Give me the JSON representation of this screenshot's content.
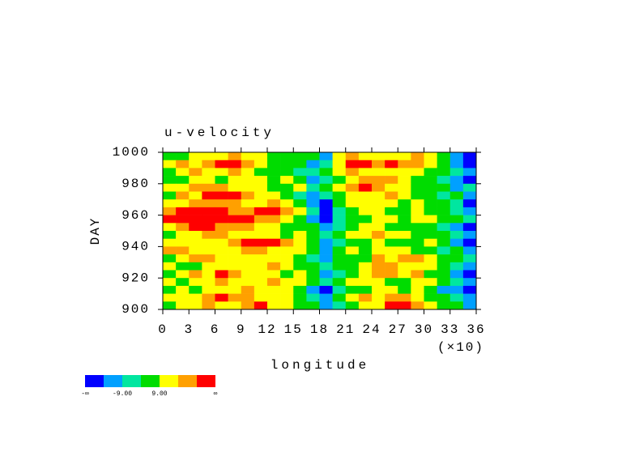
{
  "chart_data": {
    "type": "heatmap",
    "title": "u-velocity",
    "x_label": "longitude",
    "x_scale_label": "(×10)",
    "y_label": "DAY",
    "xlim": [
      0,
      36
    ],
    "xticks": [
      0,
      3,
      6,
      9,
      12,
      15,
      18,
      21,
      24,
      27,
      30,
      33,
      36
    ],
    "ylim": [
      900,
      1000
    ],
    "yticks": [
      900,
      920,
      940,
      960,
      980,
      1000
    ],
    "x": [
      0.75,
      2.25,
      3.75,
      5.25,
      6.75,
      8.25,
      9.75,
      11.25,
      12.75,
      14.25,
      15.75,
      17.25,
      18.75,
      20.25,
      21.75,
      23.25,
      24.75,
      26.25,
      27.75,
      29.25,
      30.75,
      32.25,
      33.75,
      35.25
    ],
    "y": [
      997.5,
      992.5,
      987.5,
      982.5,
      977.5,
      972.5,
      967.5,
      962.5,
      957.5,
      952.5,
      947.5,
      942.5,
      937.5,
      932.5,
      927.5,
      922.5,
      917.5,
      912.5,
      907.5,
      902.5
    ],
    "z": [
      [
        4,
        4,
        13,
        13,
        13,
        22,
        13,
        13,
        4,
        4,
        4,
        4,
        -13,
        13,
        22,
        13,
        13,
        13,
        13,
        22,
        13,
        4,
        -13,
        -22
      ],
      [
        13,
        22,
        13,
        22,
        31,
        31,
        22,
        13,
        4,
        4,
        4,
        -13,
        -4,
        13,
        31,
        31,
        22,
        31,
        22,
        22,
        13,
        4,
        -13,
        -22
      ],
      [
        4,
        13,
        22,
        13,
        13,
        22,
        13,
        4,
        4,
        4,
        -4,
        -4,
        4,
        13,
        22,
        13,
        13,
        13,
        13,
        13,
        4,
        4,
        -4,
        -13
      ],
      [
        4,
        4,
        13,
        13,
        4,
        13,
        13,
        13,
        4,
        13,
        4,
        -13,
        -4,
        4,
        13,
        22,
        22,
        22,
        13,
        4,
        4,
        -4,
        -13,
        -22
      ],
      [
        13,
        13,
        22,
        22,
        22,
        13,
        13,
        13,
        4,
        4,
        13,
        -4,
        4,
        13,
        22,
        31,
        22,
        13,
        13,
        4,
        4,
        4,
        -13,
        -4
      ],
      [
        4,
        22,
        13,
        31,
        31,
        31,
        22,
        13,
        13,
        4,
        -4,
        -13,
        -4,
        4,
        13,
        13,
        13,
        22,
        13,
        4,
        4,
        -4,
        4,
        -13
      ],
      [
        13,
        13,
        22,
        22,
        22,
        22,
        13,
        13,
        22,
        13,
        4,
        -13,
        -22,
        4,
        13,
        13,
        13,
        13,
        4,
        13,
        4,
        4,
        -4,
        -22
      ],
      [
        22,
        31,
        31,
        31,
        31,
        22,
        22,
        31,
        31,
        22,
        13,
        -4,
        -22,
        -4,
        4,
        13,
        13,
        4,
        4,
        13,
        4,
        4,
        -4,
        -13
      ],
      [
        31,
        31,
        31,
        31,
        31,
        31,
        31,
        22,
        22,
        13,
        4,
        -13,
        -22,
        -4,
        4,
        4,
        13,
        13,
        4,
        13,
        13,
        4,
        4,
        -4
      ],
      [
        13,
        22,
        31,
        31,
        22,
        22,
        22,
        13,
        13,
        4,
        4,
        4,
        -13,
        -4,
        4,
        13,
        13,
        4,
        4,
        4,
        4,
        -4,
        -13,
        -22
      ],
      [
        4,
        13,
        13,
        22,
        22,
        13,
        13,
        13,
        13,
        4,
        13,
        4,
        -4,
        4,
        13,
        13,
        22,
        13,
        13,
        4,
        4,
        4,
        -4,
        -13
      ],
      [
        13,
        13,
        13,
        13,
        13,
        22,
        31,
        31,
        31,
        22,
        13,
        4,
        -13,
        -4,
        4,
        4,
        13,
        4,
        4,
        4,
        13,
        4,
        -13,
        -22
      ],
      [
        22,
        22,
        13,
        13,
        13,
        13,
        22,
        22,
        13,
        13,
        13,
        4,
        -13,
        4,
        13,
        4,
        13,
        13,
        13,
        4,
        4,
        -4,
        4,
        -13
      ],
      [
        4,
        13,
        22,
        22,
        13,
        13,
        13,
        13,
        13,
        13,
        4,
        -4,
        -13,
        4,
        4,
        4,
        22,
        13,
        22,
        22,
        13,
        4,
        4,
        -4
      ],
      [
        13,
        4,
        4,
        13,
        13,
        13,
        13,
        13,
        22,
        13,
        4,
        4,
        -4,
        4,
        4,
        13,
        22,
        22,
        13,
        13,
        13,
        4,
        -4,
        -13
      ],
      [
        4,
        13,
        22,
        13,
        31,
        22,
        13,
        13,
        13,
        4,
        13,
        4,
        -13,
        -4,
        4,
        13,
        22,
        22,
        13,
        22,
        4,
        4,
        -13,
        -22
      ],
      [
        13,
        4,
        13,
        13,
        22,
        13,
        13,
        13,
        22,
        13,
        13,
        4,
        -4,
        4,
        13,
        13,
        13,
        4,
        4,
        13,
        13,
        4,
        -4,
        -13
      ],
      [
        4,
        13,
        4,
        13,
        13,
        13,
        22,
        13,
        13,
        13,
        4,
        -13,
        -22,
        -4,
        4,
        4,
        13,
        13,
        4,
        13,
        4,
        -13,
        -13,
        -22
      ],
      [
        13,
        13,
        13,
        22,
        31,
        22,
        22,
        13,
        13,
        13,
        4,
        -4,
        -13,
        4,
        13,
        22,
        13,
        22,
        22,
        13,
        4,
        4,
        -4,
        -13
      ],
      [
        4,
        13,
        13,
        22,
        13,
        13,
        22,
        31,
        13,
        13,
        4,
        4,
        -13,
        -4,
        4,
        13,
        13,
        31,
        31,
        22,
        13,
        4,
        4,
        -13
      ]
    ],
    "colorbar": {
      "colors": [
        "#0000ff",
        "#00a0ff",
        "#00e6a0",
        "#00dc00",
        "#ffff00",
        "#ffa000",
        "#ff0000"
      ],
      "levels": [
        -18,
        -9,
        0,
        9,
        18,
        27
      ],
      "labels": [
        {
          "value": -9,
          "label": "-9.00"
        },
        {
          "value": 9,
          "label": "9.00"
        }
      ],
      "ends": [
        "-∞",
        "∞"
      ]
    }
  }
}
